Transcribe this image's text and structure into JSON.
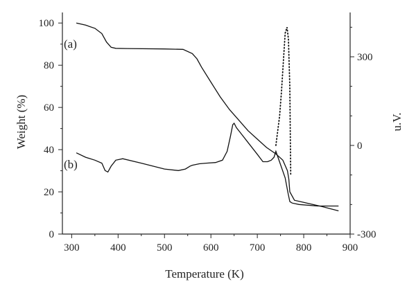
{
  "chart_data": {
    "type": "line",
    "xlabel": "Temperature (K)",
    "ylabel": "Weight (%)",
    "y2label": "u.V.",
    "xlim": [
      280,
      900
    ],
    "ylim": [
      0,
      105
    ],
    "y2lim": [
      -300,
      450
    ],
    "xticks": [
      300,
      400,
      500,
      600,
      700,
      800,
      900
    ],
    "yticks": [
      0,
      20,
      40,
      60,
      80,
      100
    ],
    "y2ticks": [
      -300,
      0,
      300
    ],
    "grid": false,
    "series": [
      {
        "name": "(a)",
        "axis": "left",
        "style": "solid",
        "x": [
          310,
          330,
          350,
          365,
          375,
          385,
          395,
          420,
          500,
          540,
          560,
          570,
          580,
          600,
          620,
          640,
          660,
          680,
          700,
          720,
          740,
          755,
          765,
          768,
          770,
          780,
          800,
          840,
          875
        ],
        "y": [
          100,
          99,
          97.5,
          95,
          91,
          88.5,
          88,
          87.9,
          87.7,
          87.5,
          85.5,
          83,
          79,
          72,
          65,
          59,
          54,
          49,
          45,
          41,
          38,
          35,
          30,
          26,
          20,
          16,
          15,
          13,
          11
        ]
      },
      {
        "name": "(b)",
        "axis": "right",
        "style": "solid",
        "x": [
          310,
          330,
          350,
          365,
          372,
          378,
          385,
          395,
          410,
          450,
          500,
          530,
          545,
          555,
          560,
          575,
          590,
          610,
          625,
          635,
          642,
          647,
          650,
          655,
          665,
          680,
          700,
          712,
          722,
          730,
          736,
          740,
          760,
          766,
          770,
          775,
          790,
          830,
          875
        ],
        "y": [
          -25,
          -40,
          -50,
          -60,
          -85,
          -90,
          -70,
          -50,
          -45,
          -60,
          -80,
          -85,
          -80,
          -70,
          -67,
          -62,
          -60,
          -58,
          -50,
          -20,
          30,
          70,
          75,
          60,
          40,
          10,
          -30,
          -55,
          -55,
          -50,
          -40,
          -20,
          -110,
          -160,
          -190,
          -195,
          -200,
          -205,
          -205
        ]
      },
      {
        "name": "",
        "axis": "right",
        "style": "dotted",
        "x": [
          740,
          748,
          752,
          756,
          760,
          764,
          767,
          770,
          772
        ],
        "y": [
          0,
          100,
          180,
          280,
          380,
          400,
          360,
          200,
          -100
        ]
      }
    ],
    "annotations": [
      "(a)",
      "(b)"
    ]
  }
}
